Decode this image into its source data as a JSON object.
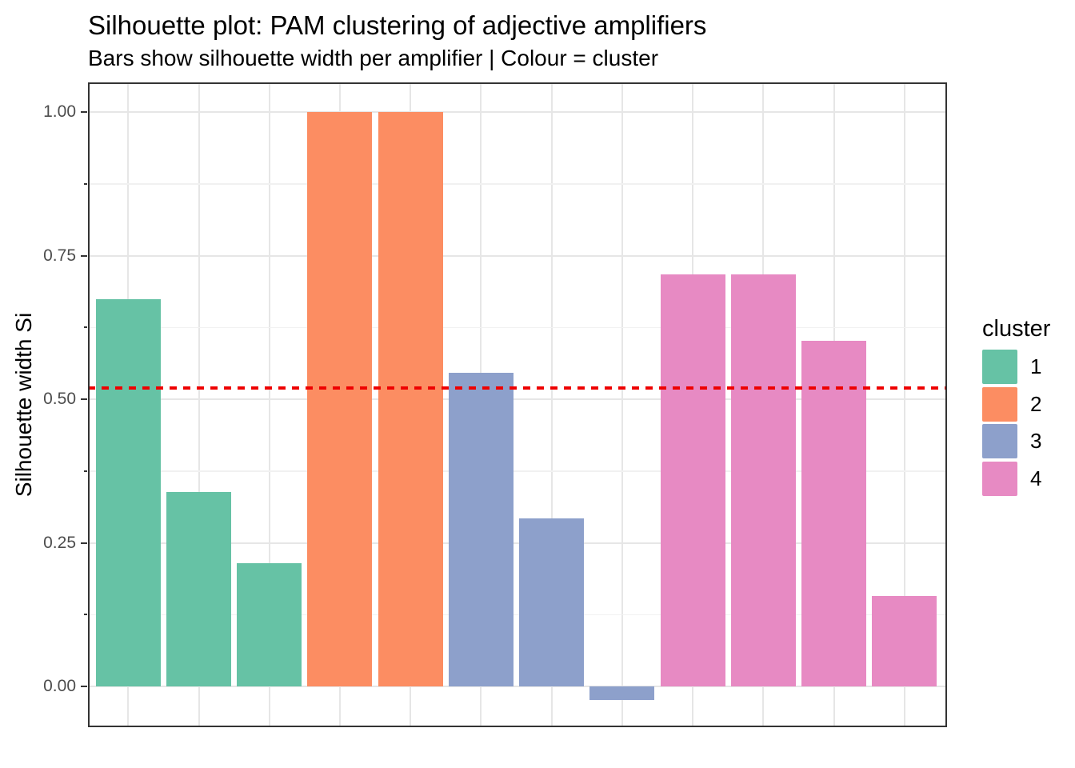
{
  "chart_data": {
    "type": "bar",
    "title": "Silhouette plot: PAM clustering of adjective amplifiers",
    "subtitle": "Bars show silhouette width per amplifier | Colour = cluster",
    "ylabel": "Silhouette width Si",
    "xlabel": "",
    "x_axis_labels_visible": false,
    "bars": [
      {
        "cluster": 1,
        "si": 0.674
      },
      {
        "cluster": 1,
        "si": 0.338
      },
      {
        "cluster": 1,
        "si": 0.214
      },
      {
        "cluster": 2,
        "si": 1.0
      },
      {
        "cluster": 2,
        "si": 1.0
      },
      {
        "cluster": 3,
        "si": 0.546
      },
      {
        "cluster": 3,
        "si": 0.292
      },
      {
        "cluster": 3,
        "si": -0.024
      },
      {
        "cluster": 4,
        "si": 0.717
      },
      {
        "cluster": 4,
        "si": 0.717
      },
      {
        "cluster": 4,
        "si": 0.602
      },
      {
        "cluster": 4,
        "si": 0.157
      }
    ],
    "cluster_colors": {
      "1": "#66C2A5",
      "2": "#FC8D62",
      "3": "#8DA0CB",
      "4": "#E78AC3"
    },
    "yticks": [
      {
        "value": 0.0,
        "label": "0.00"
      },
      {
        "value": 0.25,
        "label": "0.25"
      },
      {
        "value": 0.5,
        "label": "0.50"
      },
      {
        "value": 0.75,
        "label": "0.75"
      },
      {
        "value": 1.0,
        "label": "1.00"
      }
    ],
    "minor_tick_values": [
      0.125,
      0.375,
      0.625,
      0.875
    ],
    "ylim": [
      -0.07,
      1.05
    ],
    "grid": true,
    "legend_position": "right",
    "reference_line": {
      "value": 0.52,
      "color": "#EE0000",
      "linetype": "dashed"
    },
    "legend": {
      "title": "cluster",
      "entries": [
        {
          "label": "1",
          "color": "#66C2A5"
        },
        {
          "label": "2",
          "color": "#FC8D62"
        },
        {
          "label": "3",
          "color": "#8DA0CB"
        },
        {
          "label": "4",
          "color": "#E78AC3"
        }
      ]
    }
  },
  "colors": {
    "background": "#FFFFFF",
    "panel_border": "#333333",
    "grid_major": "#E6E6E6",
    "grid_minor": "#F1F1F1",
    "tick_mark": "#333333",
    "tick_label": "#4D4D4D",
    "title_text": "#000000"
  }
}
